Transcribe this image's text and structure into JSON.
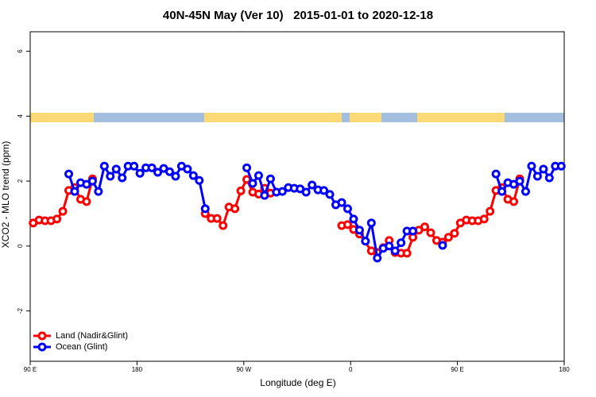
{
  "chart_data": {
    "type": "line",
    "title": "40N-45N May (Ver 10)   2015-01-01 to 2020-12-18",
    "xlabel": "Longitude (deg E)",
    "ylabel": "XCO2 - MLO trend (ppm)",
    "xlim": [
      90,
      540
    ],
    "ylim": [
      -3.55,
      6.6
    ],
    "xticks": [
      {
        "value": 90,
        "label": "90 E"
      },
      {
        "value": 180,
        "label": "180"
      },
      {
        "value": 270,
        "label": "90 W"
      },
      {
        "value": 360,
        "label": "0"
      },
      {
        "value": 450,
        "label": "90 E"
      },
      {
        "value": 540,
        "label": "180"
      }
    ],
    "yticks": [
      -2,
      0,
      2,
      4,
      6
    ],
    "legend": "bottom-left",
    "series": [
      {
        "name": "Land (Nadir&Glint)",
        "color": "#ff0000",
        "x": [
          92.5,
          97.5,
          102.5,
          107.5,
          112.5,
          117.5,
          122.5,
          127.5,
          132.5,
          137.5,
          142.5,
          147.5,
          237.5,
          242.5,
          247.5,
          252.5,
          257.5,
          262.5,
          267.5,
          272.5,
          277.5,
          282.5,
          287.5,
          292.5,
          297.5,
          352.5,
          357.5,
          362.5,
          367.5,
          377.5,
          382.5,
          387.5,
          392.5,
          397.5,
          402.5,
          407.5,
          412.5,
          417.5,
          422.5,
          427.5,
          432.5,
          437.5,
          442.5,
          447.5,
          452.5,
          457.5,
          462.5,
          467.5,
          472.5,
          477.5,
          482.5,
          487.5,
          492.5,
          497.5,
          502.5
        ],
        "values": [
          0.71,
          0.8,
          0.78,
          0.78,
          0.83,
          1.07,
          1.71,
          1.8,
          1.44,
          1.37,
          2.07,
          null,
          1.0,
          0.85,
          0.85,
          0.63,
          1.2,
          1.15,
          1.7,
          2.05,
          1.66,
          1.6,
          1.78,
          1.63,
          null,
          0.63,
          0.66,
          0.51,
          0.37,
          -0.15,
          -0.2,
          -0.05,
          0.17,
          -0.2,
          -0.22,
          -0.22,
          0.27,
          0.49,
          0.59,
          0.41,
          0.17,
          0.12,
          0.27,
          0.39,
          0.71,
          0.8,
          0.78,
          0.78,
          0.83,
          1.07,
          1.71,
          1.8,
          1.44,
          1.37,
          2.07
        ]
      },
      {
        "name": "Ocean (Glint)",
        "color": "#0000ff",
        "x": [
          122.5,
          127.5,
          132.5,
          137.5,
          142.5,
          147.5,
          152.5,
          157.5,
          162.5,
          167.5,
          172.5,
          177.5,
          182.5,
          187.5,
          192.5,
          197.5,
          202.5,
          207.5,
          212.5,
          217.5,
          222.5,
          227.5,
          232.5,
          237.5,
          242.5,
          272.5,
          277.5,
          282.5,
          287.5,
          292.5,
          297.5,
          302.5,
          307.5,
          312.5,
          317.5,
          322.5,
          327.5,
          332.5,
          337.5,
          342.5,
          347.5,
          352.5,
          357.5,
          362.5,
          367.5,
          372.5,
          377.5,
          382.5,
          387.5,
          392.5,
          397.5,
          402.5,
          407.5,
          412.5,
          417.5,
          437.5,
          442.5,
          482.5,
          487.5,
          492.5,
          497.5,
          502.5,
          507.5,
          512.5,
          517.5,
          522.5,
          527.5,
          532.5,
          537.5
        ],
        "values": [
          2.22,
          1.68,
          1.95,
          1.9,
          2.0,
          1.68,
          2.46,
          2.15,
          2.37,
          2.1,
          2.46,
          2.46,
          2.24,
          2.41,
          2.41,
          2.27,
          2.39,
          2.29,
          2.15,
          2.46,
          2.37,
          2.17,
          2.02,
          1.15,
          null,
          2.41,
          1.93,
          2.17,
          1.56,
          2.07,
          1.66,
          1.68,
          1.8,
          1.78,
          1.76,
          1.66,
          1.88,
          1.73,
          1.71,
          1.59,
          1.27,
          1.34,
          1.15,
          0.83,
          0.49,
          0.15,
          0.71,
          -0.37,
          -0.07,
          0,
          -0.15,
          0.1,
          0.46,
          0.46,
          null,
          0.02,
          null,
          2.22,
          1.68,
          1.95,
          1.9,
          2.0,
          1.68,
          2.46,
          2.15,
          2.37,
          2.1,
          2.46,
          2.46
        ]
      }
    ]
  }
}
